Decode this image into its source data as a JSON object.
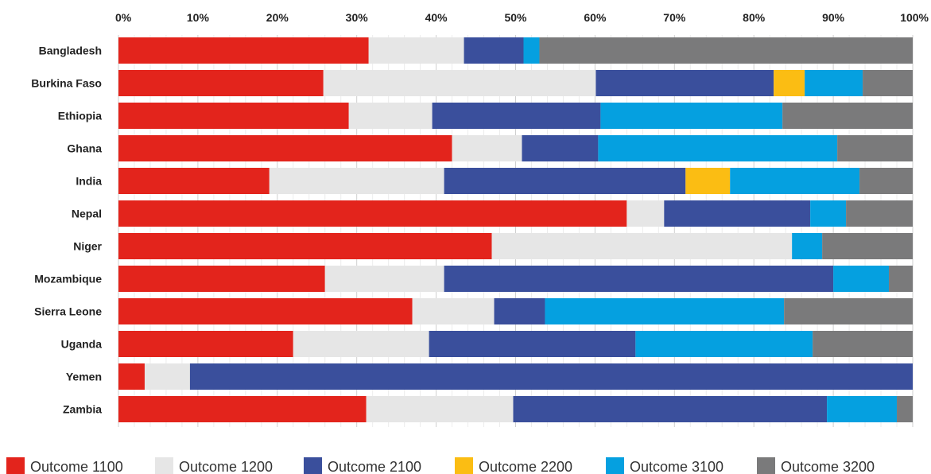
{
  "chart_data": {
    "type": "bar",
    "orientation": "horizontal",
    "stacked": true,
    "title": "",
    "xlabel": "",
    "ylabel": "",
    "xlim": [
      0,
      100
    ],
    "x_ticks": [
      "0%",
      "10%",
      "20%",
      "30%",
      "40%",
      "50%",
      "60%",
      "70%",
      "80%",
      "90%",
      "100%"
    ],
    "grid": true,
    "legend_position": "bottom",
    "categories": [
      "Bangladesh",
      "Burkina Faso",
      "Ethiopia",
      "Ghana",
      "India",
      "Nepal",
      "Niger",
      "Mozambique",
      "Sierra Leone",
      "Uganda",
      "Yemen",
      "Zambia"
    ],
    "series": [
      {
        "name": "Outcome 1100",
        "color": "#e3241c",
        "values": [
          31.5,
          25.8,
          29.0,
          42.0,
          19.0,
          64.0,
          47.0,
          26.0,
          37.0,
          22.0,
          3.3,
          31.2
        ]
      },
      {
        "name": "Outcome 1200",
        "color": "#e6e6e6",
        "values": [
          12.0,
          34.3,
          10.5,
          8.8,
          22.0,
          4.7,
          37.8,
          15.0,
          10.3,
          17.1,
          5.7,
          18.5
        ]
      },
      {
        "name": "Outcome 2100",
        "color": "#3a4f9c",
        "values": [
          7.5,
          22.4,
          21.2,
          9.6,
          30.4,
          18.4,
          0,
          49.0,
          6.4,
          26.0,
          91.0,
          39.5
        ]
      },
      {
        "name": "Outcome 2200",
        "color": "#fbbd13",
        "values": [
          0,
          3.9,
          0,
          0,
          5.6,
          0,
          0,
          0,
          0,
          0,
          0,
          0
        ]
      },
      {
        "name": "Outcome 3100",
        "color": "#05a0e0",
        "values": [
          2.0,
          7.3,
          22.9,
          30.1,
          16.3,
          4.5,
          3.8,
          7.0,
          30.1,
          22.3,
          0,
          8.8
        ]
      },
      {
        "name": "Outcome 3200",
        "color": "#7a7a7b",
        "values": [
          47.0,
          6.3,
          16.4,
          9.5,
          6.7,
          8.4,
          11.4,
          3.0,
          16.2,
          12.6,
          0,
          2.0
        ]
      }
    ]
  }
}
